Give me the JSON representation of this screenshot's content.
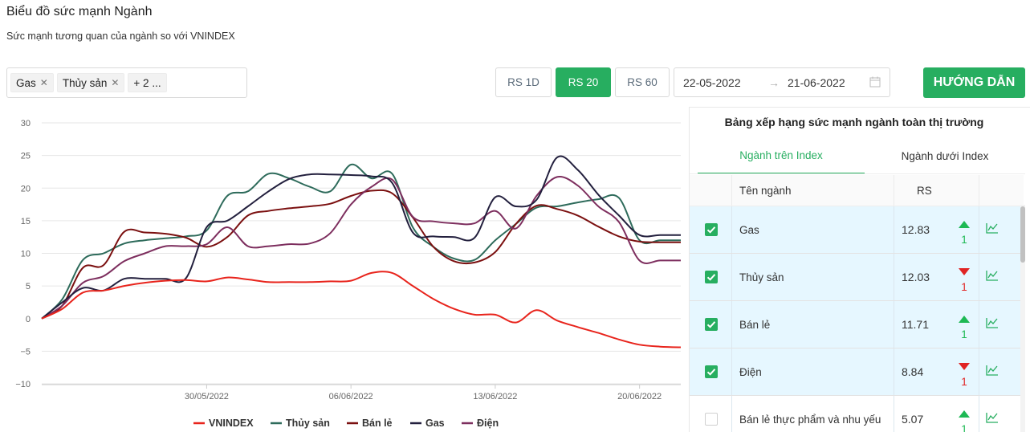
{
  "header": {
    "title": "Biểu đồ sức mạnh Ngành",
    "subtitle": "Sức mạnh tương quan của ngành so với VNINDEX"
  },
  "filter": {
    "tags": [
      "Gas",
      "Thủy sản"
    ],
    "more": "+ 2 ...",
    "remove_icon": "close-icon"
  },
  "rs_buttons": [
    {
      "label": "RS 1D",
      "active": false
    },
    {
      "label": "RS 20",
      "active": true
    },
    {
      "label": "RS 60",
      "active": false
    }
  ],
  "date_range": {
    "start": "22-05-2022",
    "arrow": "→",
    "end": "21-06-2022",
    "icon": "calendar-icon"
  },
  "guide_button": "HƯỚNG DẪN",
  "colors": {
    "accent": "#27ae60",
    "up": "#1db954",
    "down": "#e02424"
  },
  "chart_data": {
    "type": "line",
    "ylim": [
      -10,
      30
    ],
    "y_ticks": [
      "30",
      "25",
      "20",
      "15",
      "10",
      "5",
      "0",
      "−5",
      "−10"
    ],
    "x_range": [
      0,
      31
    ],
    "x_ticks": [
      {
        "label": "30/05/2022",
        "x": 8
      },
      {
        "label": "06/06/2022",
        "x": 15
      },
      {
        "label": "13/06/2022",
        "x": 22
      },
      {
        "label": "20/06/2022",
        "x": 29
      }
    ],
    "x": [
      0,
      1,
      2,
      3,
      4,
      5,
      6,
      7,
      8,
      9,
      10,
      11,
      12,
      13,
      14,
      15,
      16,
      17,
      18,
      19,
      20,
      21,
      22,
      23,
      24,
      25,
      26,
      27,
      28,
      29,
      30,
      31
    ],
    "series": [
      {
        "name": "VNINDEX",
        "color": "#e8241c",
        "values": [
          0,
          1.5,
          4,
          4.3,
          5,
          5.5,
          5.8,
          5.9,
          5.7,
          6.3,
          6.0,
          5.6,
          5.6,
          5.6,
          5.7,
          5.8,
          7.0,
          7.0,
          5.0,
          3.0,
          1.5,
          0.6,
          0.6,
          -0.6,
          1.3,
          -0.3,
          -1.3,
          -2.2,
          -3.2,
          -4.0,
          -4.3,
          -4.4
        ]
      },
      {
        "name": "Thủy sản",
        "color": "#2e6b5b",
        "values": [
          0,
          3,
          9,
          10,
          11.5,
          12,
          12.3,
          12.6,
          13.5,
          18.8,
          19.5,
          22.2,
          21.5,
          20.2,
          19.5,
          23.6,
          21.5,
          22.2,
          14,
          11,
          9.2,
          9,
          12,
          14.5,
          17,
          17.2,
          17.8,
          18.3,
          18.5,
          12,
          12,
          12
        ]
      },
      {
        "name": "Bán lẻ",
        "color": "#7b1010",
        "values": [
          0,
          2,
          7.8,
          8.2,
          13.3,
          13.2,
          13,
          12.4,
          11,
          12.5,
          15.8,
          16.5,
          16.9,
          17.2,
          17.6,
          18.8,
          19.6,
          19.2,
          15.5,
          11,
          8.8,
          8.6,
          10.2,
          14.5,
          17.3,
          16.8,
          15.8,
          14.1,
          12.6,
          11.8,
          11.7,
          11.7
        ]
      },
      {
        "name": "Gas",
        "color": "#23203e",
        "values": [
          0,
          2.5,
          4.7,
          4.3,
          6.1,
          6.1,
          6.1,
          6.2,
          14,
          15,
          17.2,
          19.5,
          21.4,
          22.1,
          22.1,
          22.0,
          21.8,
          20.8,
          13.2,
          12.6,
          12.5,
          12.4,
          18.6,
          17.2,
          18.2,
          24.7,
          22.8,
          19,
          15.8,
          12.8,
          12.8,
          12.8
        ]
      },
      {
        "name": "Điện",
        "color": "#7d2e5e",
        "values": [
          0,
          2,
          5.5,
          6.5,
          8.8,
          10,
          11.1,
          11.1,
          11.4,
          14,
          11.1,
          11.1,
          11.4,
          11.5,
          13.1,
          17.5,
          20.2,
          21.3,
          15.6,
          14.9,
          14.6,
          14.6,
          16.5,
          13.8,
          18.8,
          21.7,
          20.4,
          17.2,
          14.8,
          8.9,
          8.9,
          8.9
        ]
      }
    ]
  },
  "ranking": {
    "title": "Bảng xếp hạng sức mạnh ngành toàn thị trường",
    "tabs": [
      {
        "label": "Ngành trên Index",
        "active": true
      },
      {
        "label": "Ngành dưới Index",
        "active": false
      }
    ],
    "columns": {
      "name": "Tên ngành",
      "rs": "RS"
    },
    "rows": [
      {
        "checked": true,
        "name": "Gas",
        "rs": "12.83",
        "dir": "up",
        "rank": "1"
      },
      {
        "checked": true,
        "name": "Thủy sản",
        "rs": "12.03",
        "dir": "down",
        "rank": "1"
      },
      {
        "checked": true,
        "name": "Bán lẻ",
        "rs": "11.71",
        "dir": "up",
        "rank": "1"
      },
      {
        "checked": true,
        "name": "Điện",
        "rs": "8.84",
        "dir": "down",
        "rank": "1"
      },
      {
        "checked": false,
        "name": "Bán lẻ thực phẩm và nhu yếu",
        "rs": "5.07",
        "dir": "up",
        "rank": "1"
      }
    ]
  }
}
